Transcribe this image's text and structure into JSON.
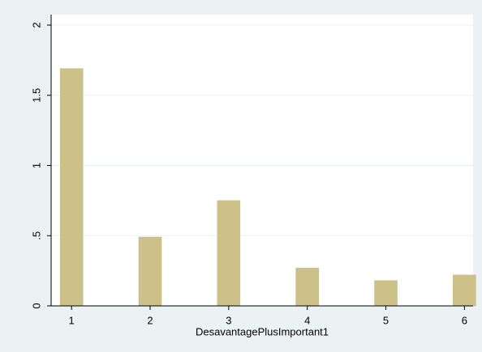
{
  "chart_data": {
    "type": "bar",
    "x_label": "DesavantagePlusImportant1",
    "x": [
      1,
      2,
      3,
      4,
      5,
      6
    ],
    "values": [
      1.69,
      0.49,
      0.75,
      0.27,
      0.18,
      0.22
    ],
    "color": "#cdc18a",
    "xlim": [
      0.74,
      6.11
    ],
    "xticks": [
      1,
      2,
      3,
      4,
      5,
      6
    ],
    "ylim": [
      0,
      2
    ],
    "yticks": [
      0,
      {
        "value": 0.5,
        "label": ".5"
      },
      1,
      1.5,
      2
    ],
    "grid": true
  }
}
